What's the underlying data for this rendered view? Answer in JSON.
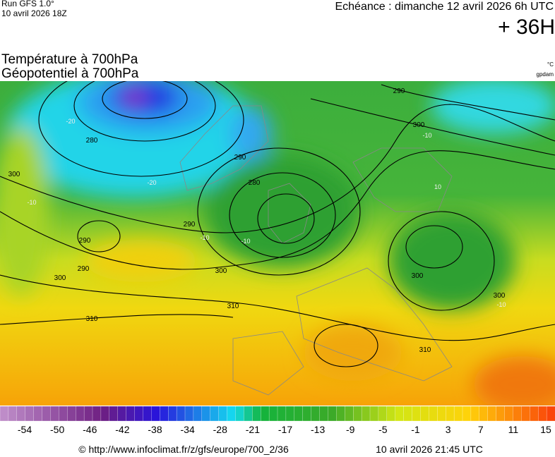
{
  "header": {
    "run": "Run GFS 1.0°",
    "run_date": "10 avril 2026 18Z",
    "forecast": "Echéance : dimanche 12 avril 2026 6h UTC",
    "lead": "+ 36H"
  },
  "map": {
    "title_lines": [
      "Température à 700hPa",
      "Géopotentiel à 700hPa"
    ],
    "units": [
      "°C",
      "gpdam"
    ],
    "contour_labels": [
      "280",
      "290",
      "300",
      "280",
      "290",
      "290",
      "300",
      "300",
      "310",
      "310",
      "310",
      "300",
      "300",
      "300",
      "290",
      "290"
    ],
    "isotherm_labels": [
      "-20",
      "-20",
      "-10",
      "-10",
      "-10",
      "10",
      "-10",
      "-10"
    ]
  },
  "colorbar": {
    "labels": [
      -54,
      -50,
      -46,
      -42,
      -38,
      -34,
      -28,
      -21,
      -17,
      -13,
      -9,
      -5,
      -1,
      3,
      7,
      11,
      15
    ]
  },
  "footer": {
    "source": "© http://www.infoclimat.fr/z/gfs/europe/700_2/36",
    "issued": "10 avril 2026 21:45 UTC"
  }
}
